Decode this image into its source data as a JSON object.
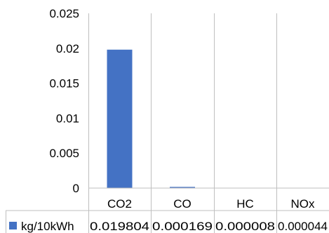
{
  "chart_data": {
    "type": "bar",
    "title": "",
    "xlabel": "",
    "ylabel": "",
    "categories": [
      "CO2",
      "CO",
      "HC",
      "NOx"
    ],
    "series": [
      {
        "name": "kg/10kWh",
        "values": [
          0.019804,
          0.000169,
          8e-06,
          4.4e-05
        ],
        "labels": [
          "0.019804",
          "0.000169",
          "0.000008",
          "0.000044"
        ],
        "color": "#4472C4"
      }
    ],
    "ylim": [
      0,
      0.025
    ],
    "yticks": [
      "0",
      "0.005",
      "0.01",
      "0.015",
      "0.02",
      "0.025"
    ],
    "grid": false,
    "data_table": true
  }
}
